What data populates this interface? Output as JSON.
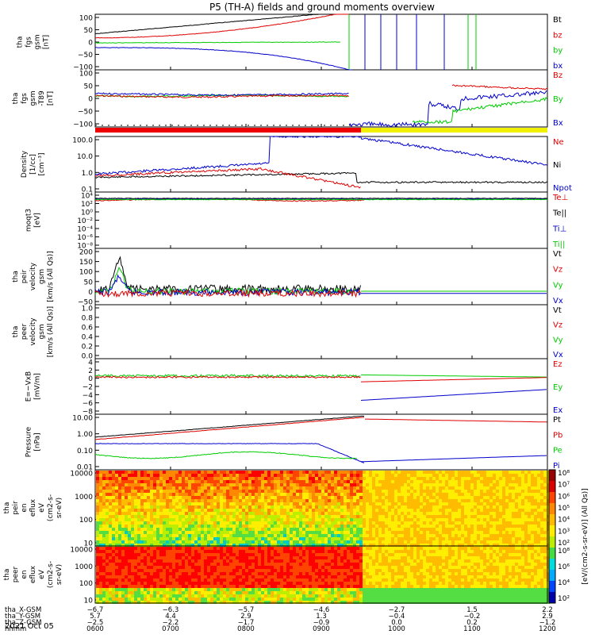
{
  "figure": {
    "title": "P5 (TH-A) fields and ground moments overview",
    "date_label": "2021 Oct 05"
  },
  "colors": {
    "black": "#000000",
    "red": "#e00000",
    "green": "#00cc00",
    "blue": "#0000cc",
    "yellow": "#f0f000",
    "flag_red": "#ee0000"
  },
  "chart_data": [
    {
      "type": "line",
      "ylabel_lines": [
        "tha",
        "fgs",
        "gsm",
        "[nT]"
      ],
      "yticks": [
        "100",
        "50",
        "0",
        "−50",
        "−100"
      ],
      "ylim": [
        -100,
        100
      ],
      "legend": [
        {
          "text": "Bt",
          "color": "black"
        },
        {
          "text": "bz",
          "color": "red"
        },
        {
          "text": "by",
          "color": "green"
        },
        {
          "text": "bx",
          "color": "blue"
        }
      ]
    },
    {
      "type": "line",
      "ylabel_lines": [
        "tha",
        "fgs",
        "gsm",
        "-T89",
        "[nT]"
      ],
      "yticks": [
        "100",
        "50",
        "0",
        "−50",
        "−100"
      ],
      "ylim": [
        -120,
        100
      ],
      "legend": [
        {
          "text": "Bz",
          "color": "red"
        },
        {
          "text": "By",
          "color": "green"
        },
        {
          "text": "Bx",
          "color": "blue"
        }
      ]
    },
    {
      "type": "line",
      "ylabel_lines": [
        "Density",
        "[1/cc]",
        "[cm⁻³]"
      ],
      "yticks": [
        "100.0",
        "10.0",
        "1.0",
        "0.1"
      ],
      "scale": "log",
      "legend": [
        {
          "text": "Ne",
          "color": "red"
        },
        {
          "text": "Ni",
          "color": "black"
        },
        {
          "text": "Npot",
          "color": "blue"
        }
      ]
    },
    {
      "type": "line",
      "ylabel_lines": [
        "moqt3",
        "[eV]"
      ],
      "yticks": [
        "10⁴",
        "10²",
        "10⁰",
        "10⁻²",
        "10⁻⁴",
        "10⁻⁶",
        "10⁻⁸"
      ],
      "scale": "log",
      "legend": [
        {
          "text": "Te⊥",
          "color": "red"
        },
        {
          "text": "Te||",
          "color": "black"
        },
        {
          "text": "Ti⊥",
          "color": "blue"
        },
        {
          "text": "Ti||",
          "color": "green"
        }
      ]
    },
    {
      "type": "line",
      "ylabel_lines": [
        "tha",
        "peir",
        "velocity",
        "gsm",
        "[km/s (All Qs)]"
      ],
      "yticks": [
        "200",
        "150",
        "100",
        "50",
        "0",
        "−50"
      ],
      "ylim": [
        -50,
        200
      ],
      "legend": [
        {
          "text": "Vt",
          "color": "black"
        },
        {
          "text": "Vz",
          "color": "red"
        },
        {
          "text": "Vy",
          "color": "green"
        },
        {
          "text": "Vx",
          "color": "blue"
        }
      ]
    },
    {
      "type": "line",
      "ylabel_lines": [
        "tha",
        "peer",
        "velocity",
        "gsm",
        "[km/s (All Qs)]"
      ],
      "yticks": [
        "1.0",
        "0.8",
        "0.6",
        "0.4",
        "0.2",
        "0.0"
      ],
      "ylim": [
        0,
        1
      ],
      "legend": [
        {
          "text": "Vt",
          "color": "black"
        },
        {
          "text": "Vz",
          "color": "red"
        },
        {
          "text": "Vy",
          "color": "green"
        },
        {
          "text": "Vx",
          "color": "blue"
        }
      ]
    },
    {
      "type": "line",
      "ylabel_lines": [
        "E=−VxB",
        "[mV/m]"
      ],
      "yticks": [
        "4",
        "2",
        "0",
        "−2",
        "−4",
        "−6",
        "−8"
      ],
      "ylim": [
        -8,
        4
      ],
      "legend": [
        {
          "text": "Ez",
          "color": "red"
        },
        {
          "text": "Ey",
          "color": "green"
        },
        {
          "text": "Ex",
          "color": "blue"
        }
      ]
    },
    {
      "type": "line",
      "ylabel_lines": [
        "Pressure",
        "[nPa]"
      ],
      "yticks": [
        "10.00",
        "1.00",
        "0.10",
        "0.01"
      ],
      "scale": "log",
      "legend": [
        {
          "text": "Pt",
          "color": "black"
        },
        {
          "text": "Pb",
          "color": "red"
        },
        {
          "text": "Pe",
          "color": "green"
        },
        {
          "text": "Pi",
          "color": "blue"
        }
      ]
    },
    {
      "type": "heatmap",
      "ylabel_lines": [
        "tha",
        "peir",
        "en",
        "eflux",
        "eV",
        "(cm2-s-",
        "sr-eV)"
      ],
      "yticks": [
        "10000",
        "1000",
        "100",
        "10"
      ],
      "scale": "log",
      "colorbar_ticks": [
        "10⁸",
        "10⁷",
        "10⁶",
        "10⁵",
        "10⁴",
        "10³",
        "10²"
      ]
    },
    {
      "type": "heatmap",
      "ylabel_lines": [
        "tha",
        "peer",
        "en",
        "eflux",
        "eV",
        "(cm2-s-",
        "sr-eV)"
      ],
      "yticks": [
        "10000",
        "1000",
        "100",
        "10"
      ],
      "scale": "log",
      "colorbar_ticks": [
        "10⁸",
        "10⁶",
        "10⁴",
        "10²"
      ]
    }
  ],
  "colorbar_label": "[eV/(cm2-s-sr-eV)] (All Qs)]",
  "x_axis": {
    "row_labels": [
      "tha_X-GSM",
      "tha_Y-GSM",
      "tha_Z-GSM",
      "hhmm"
    ],
    "columns": [
      [
        "−6.7",
        "5.7",
        "−2.5",
        "0600"
      ],
      [
        "−6.3",
        "4.4",
        "−2.2",
        "0700"
      ],
      [
        "−5.7",
        "2.9",
        "−1.7",
        "0800"
      ],
      [
        "−4.6",
        "1.3",
        "−0.9",
        "0900"
      ],
      [
        "−2.7",
        "−0.4",
        "0.0",
        "1000"
      ],
      [
        "1.5",
        "−0.2",
        "0.2",
        "1100"
      ],
      [
        "2.2",
        "2.9",
        "−1.2",
        "1200"
      ]
    ]
  }
}
